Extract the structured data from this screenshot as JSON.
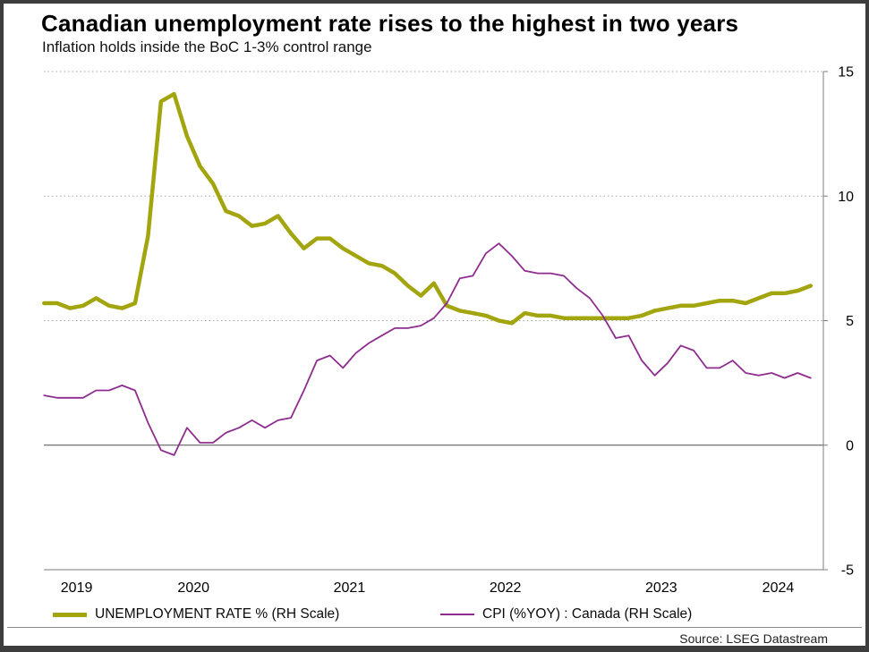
{
  "title": "Canadian unemployment rate rises to the highest in two years",
  "subtitle": "Inflation holds inside the BoC 1-3% control range",
  "source": "Source: LSEG Datastream",
  "legend": [
    {
      "label": "UNEMPLOYMENT RATE % (RH Scale)",
      "color": "#a3a50e"
    },
    {
      "label": "CPI (%YOY) : Canada (RH Scale)",
      "color": "#8e2d8f"
    }
  ],
  "chart_data": {
    "type": "line",
    "title": "Canadian unemployment rate rises to the highest in two years",
    "subtitle": "Inflation holds inside the BoC 1-3% control range",
    "x_monthly_start": "2019-07",
    "x_start": 2019.5417,
    "x_domain": [
      2019.54,
      2024.54
    ],
    "ylim": [
      -5,
      15
    ],
    "yticks": [
      15,
      10,
      5,
      0,
      -5
    ],
    "y_axis_side": "right",
    "grid": "dotted horizontal gridlines at 5, 10, 15; solid line at 0; solid baseline at -5",
    "legend_position": "bottom",
    "x_ticks": [
      {
        "label": "2019",
        "t": 2019.75
      },
      {
        "label": "2020",
        "t": 2020.5
      },
      {
        "label": "2021",
        "t": 2021.5
      },
      {
        "label": "2022",
        "t": 2022.5
      },
      {
        "label": "2023",
        "t": 2023.5
      },
      {
        "label": "2024",
        "t": 2024.25
      }
    ],
    "series": [
      {
        "id": "unemployment-rate-line",
        "name": "UNEMPLOYMENT RATE % (RH Scale)",
        "color": "#a3a50e",
        "stroke_width": 4.5,
        "values": [
          5.7,
          5.7,
          5.5,
          5.6,
          5.9,
          5.6,
          5.5,
          5.7,
          8.4,
          13.8,
          14.1,
          12.4,
          11.2,
          10.5,
          9.4,
          9.2,
          8.8,
          8.9,
          9.2,
          8.5,
          7.9,
          8.3,
          8.3,
          7.9,
          7.6,
          7.3,
          7.2,
          6.9,
          6.4,
          6.0,
          6.5,
          5.6,
          5.4,
          5.3,
          5.2,
          5.0,
          4.9,
          5.3,
          5.2,
          5.2,
          5.1,
          5.1,
          5.1,
          5.1,
          5.1,
          5.1,
          5.2,
          5.4,
          5.5,
          5.6,
          5.6,
          5.7,
          5.8,
          5.8,
          5.7,
          5.9,
          6.1,
          6.1,
          6.2,
          6.4
        ]
      },
      {
        "id": "cpi-line",
        "name": "CPI (%YOY) : Canada (RH Scale)",
        "color": "#8e2d8f",
        "stroke_width": 1.8,
        "values": [
          2.0,
          1.9,
          1.9,
          1.9,
          2.2,
          2.2,
          2.4,
          2.2,
          0.9,
          -0.2,
          -0.4,
          0.7,
          0.1,
          0.1,
          0.5,
          0.7,
          1.0,
          0.7,
          1.0,
          1.1,
          2.2,
          3.4,
          3.6,
          3.1,
          3.7,
          4.1,
          4.4,
          4.7,
          4.7,
          4.8,
          5.1,
          5.7,
          6.7,
          6.8,
          7.7,
          8.1,
          7.6,
          7.0,
          6.9,
          6.9,
          6.8,
          6.3,
          5.9,
          5.2,
          4.3,
          4.4,
          3.4,
          2.8,
          3.3,
          4.0,
          3.8,
          3.1,
          3.1,
          3.4,
          2.9,
          2.8,
          2.9,
          2.7,
          2.9,
          2.7
        ]
      }
    ]
  }
}
